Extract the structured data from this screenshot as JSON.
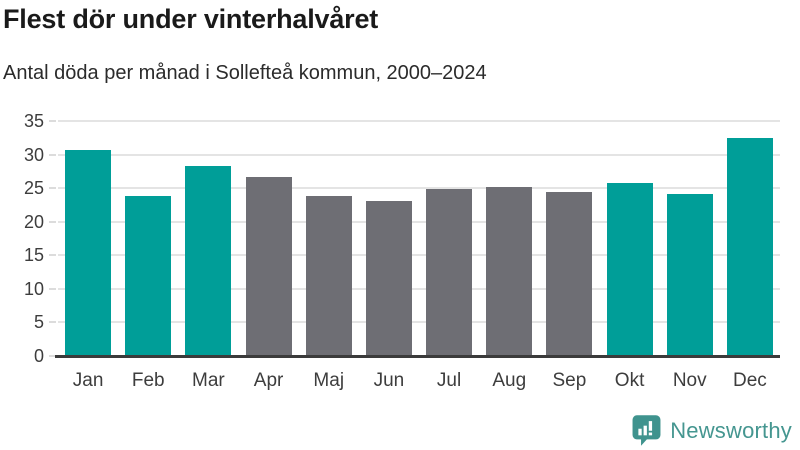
{
  "header": {
    "title": "Flest dör under vinterhalvåret",
    "subtitle": "Antal döda per månad i Sollefteå kommun, 2000–2024"
  },
  "chart_data": {
    "type": "bar",
    "categories": [
      "Jan",
      "Feb",
      "Mar",
      "Apr",
      "Maj",
      "Jun",
      "Jul",
      "Aug",
      "Sep",
      "Okt",
      "Nov",
      "Dec"
    ],
    "values": [
      30.7,
      23.8,
      28.3,
      26.7,
      23.8,
      23.1,
      24.9,
      25.1,
      24.4,
      25.7,
      24.2,
      32.4
    ],
    "groups": [
      "winter",
      "winter",
      "winter",
      "summer",
      "summer",
      "summer",
      "summer",
      "summer",
      "summer",
      "winter",
      "winter",
      "winter"
    ],
    "palette": {
      "winter": "#009E98",
      "summer": "#6E6E74"
    },
    "title": "Flest dör under vinterhalvåret",
    "subtitle": "Antal döda per månad i Sollefteå kommun, 2000–2024",
    "xlabel": "",
    "ylabel": "",
    "ylim": [
      0,
      35
    ],
    "yticks": [
      0,
      5,
      10,
      15,
      20,
      25,
      30,
      35
    ],
    "grid": true,
    "legend": "none",
    "gridline_color": "#e4e4e4",
    "baseline_color": "#3b3b3b",
    "tick_label_color": "#3d3d3d"
  },
  "branding": {
    "logo_text": "Newsworthy",
    "logo_color": "#459690",
    "logo_icon": "speech-bubble-bar-chart-icon",
    "logo_icon_color": "#3F938E"
  }
}
